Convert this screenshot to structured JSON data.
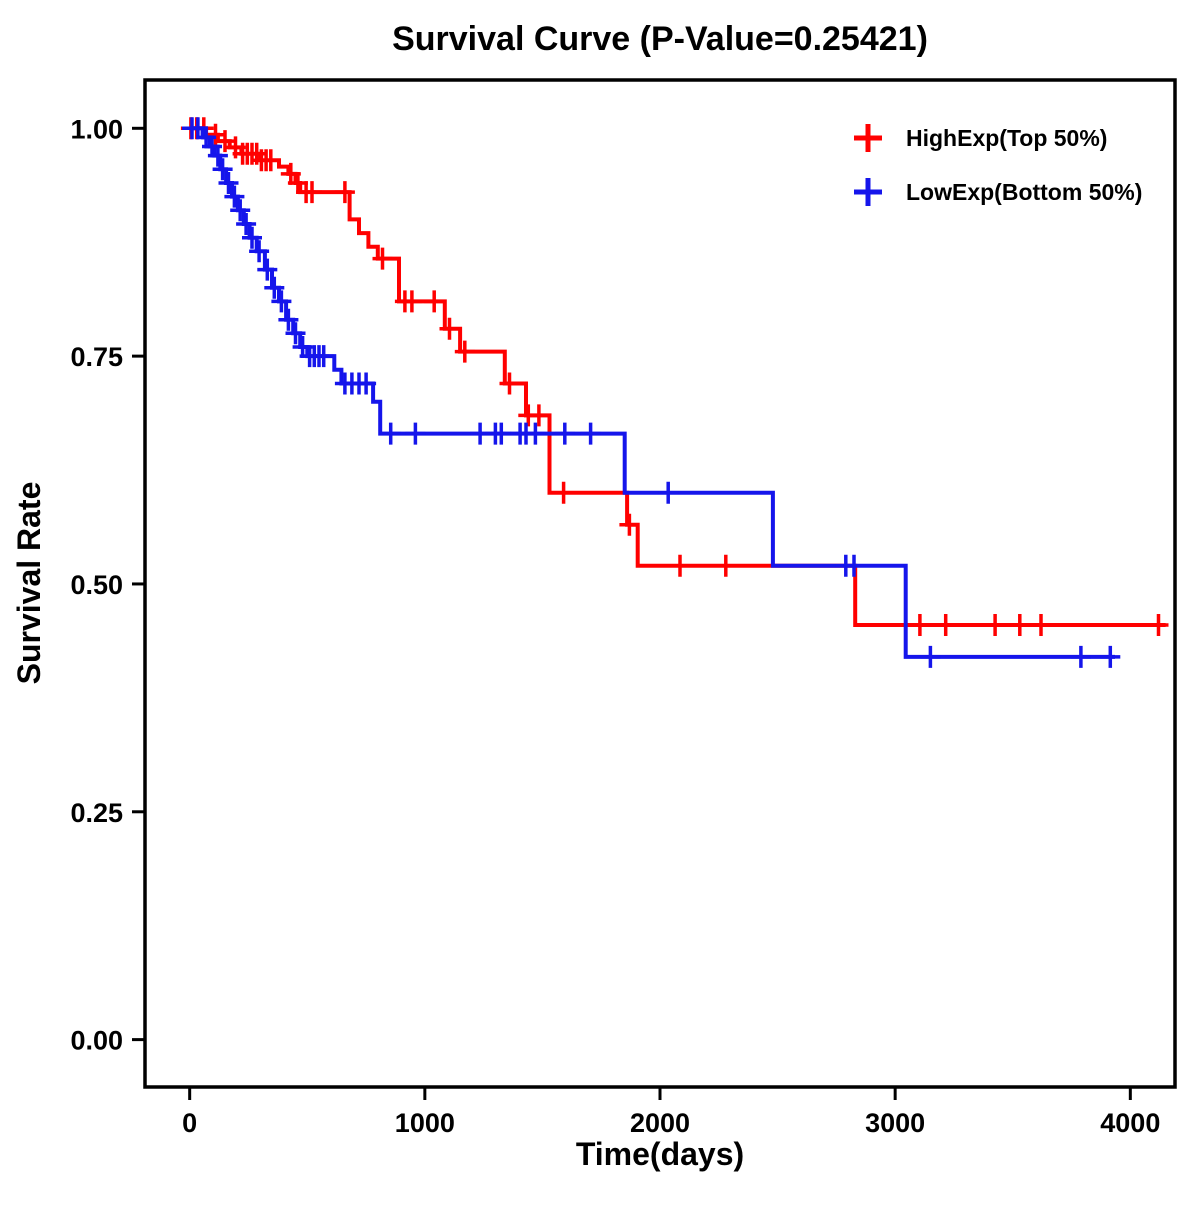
{
  "chart_data": {
    "type": "line",
    "subtype": "kaplan_meier_step_survival",
    "title": "Survival Curve (P-Value=0.25421)",
    "p_value": "0.25421",
    "xlabel": "Time(days)",
    "ylabel": "Survival Rate",
    "xlim": [
      -190,
      4190
    ],
    "ylim": [
      -0.052,
      1.053
    ],
    "grid": false,
    "legend_position": "top-right-inside",
    "xticks": [
      {
        "value": 0,
        "label": "0"
      },
      {
        "value": 1000,
        "label": "1000"
      },
      {
        "value": 2000,
        "label": "2000"
      },
      {
        "value": 3000,
        "label": "3000"
      },
      {
        "value": 4000,
        "label": "4000"
      }
    ],
    "yticks": [
      {
        "value": 0.0,
        "label": "0.00"
      },
      {
        "value": 0.25,
        "label": "0.25"
      },
      {
        "value": 0.5,
        "label": "0.50"
      },
      {
        "value": 0.75,
        "label": "0.75"
      },
      {
        "value": 1.0,
        "label": "1.00"
      }
    ],
    "series": [
      {
        "name": "HighExp(Top 50%)",
        "color": "#FF0000",
        "steps": [
          [
            0,
            1.0
          ],
          [
            70,
            0.993
          ],
          [
            120,
            0.986
          ],
          [
            170,
            0.979
          ],
          [
            220,
            0.972
          ],
          [
            300,
            0.965
          ],
          [
            380,
            0.958
          ],
          [
            420,
            0.95
          ],
          [
            450,
            0.94
          ],
          [
            470,
            0.93
          ],
          [
            680,
            0.9
          ],
          [
            720,
            0.885
          ],
          [
            760,
            0.87
          ],
          [
            800,
            0.857
          ],
          [
            890,
            0.81
          ],
          [
            1085,
            0.78
          ],
          [
            1150,
            0.755
          ],
          [
            1340,
            0.72
          ],
          [
            1430,
            0.685
          ],
          [
            1530,
            0.6
          ],
          [
            1860,
            0.565
          ],
          [
            1905,
            0.52
          ],
          [
            2830,
            0.455
          ],
          [
            4150,
            0.455
          ]
        ],
        "censors": [
          [
            5,
            1.0
          ],
          [
            30,
            1.0
          ],
          [
            60,
            1.0
          ],
          [
            110,
            0.993
          ],
          [
            150,
            0.986
          ],
          [
            195,
            0.979
          ],
          [
            225,
            0.972
          ],
          [
            245,
            0.972
          ],
          [
            265,
            0.972
          ],
          [
            285,
            0.972
          ],
          [
            305,
            0.965
          ],
          [
            325,
            0.965
          ],
          [
            345,
            0.965
          ],
          [
            430,
            0.95
          ],
          [
            460,
            0.94
          ],
          [
            495,
            0.93
          ],
          [
            520,
            0.93
          ],
          [
            660,
            0.93
          ],
          [
            820,
            0.857
          ],
          [
            915,
            0.81
          ],
          [
            945,
            0.81
          ],
          [
            1040,
            0.81
          ],
          [
            1105,
            0.78
          ],
          [
            1170,
            0.755
          ],
          [
            1360,
            0.72
          ],
          [
            1440,
            0.685
          ],
          [
            1485,
            0.685
          ],
          [
            1590,
            0.6
          ],
          [
            1870,
            0.565
          ],
          [
            2085,
            0.52
          ],
          [
            2280,
            0.52
          ],
          [
            3105,
            0.455
          ],
          [
            3215,
            0.455
          ],
          [
            3425,
            0.455
          ],
          [
            3530,
            0.455
          ],
          [
            3620,
            0.455
          ],
          [
            4120,
            0.455
          ]
        ]
      },
      {
        "name": "LowExp(Bottom 50%)",
        "color": "#1515EB",
        "steps": [
          [
            0,
            1.0
          ],
          [
            55,
            0.99
          ],
          [
            85,
            0.98
          ],
          [
            105,
            0.97
          ],
          [
            130,
            0.955
          ],
          [
            155,
            0.94
          ],
          [
            180,
            0.925
          ],
          [
            205,
            0.91
          ],
          [
            230,
            0.895
          ],
          [
            255,
            0.88
          ],
          [
            285,
            0.865
          ],
          [
            320,
            0.845
          ],
          [
            350,
            0.825
          ],
          [
            380,
            0.81
          ],
          [
            410,
            0.79
          ],
          [
            440,
            0.775
          ],
          [
            470,
            0.76
          ],
          [
            500,
            0.75
          ],
          [
            615,
            0.735
          ],
          [
            645,
            0.72
          ],
          [
            780,
            0.7
          ],
          [
            810,
            0.665
          ],
          [
            1850,
            0.6
          ],
          [
            2480,
            0.52
          ],
          [
            3045,
            0.42
          ],
          [
            3935,
            0.42
          ]
        ],
        "censors": [
          [
            10,
            1.0
          ],
          [
            35,
            1.0
          ],
          [
            70,
            0.99
          ],
          [
            95,
            0.98
          ],
          [
            120,
            0.97
          ],
          [
            140,
            0.955
          ],
          [
            165,
            0.94
          ],
          [
            190,
            0.925
          ],
          [
            215,
            0.91
          ],
          [
            240,
            0.895
          ],
          [
            265,
            0.88
          ],
          [
            295,
            0.865
          ],
          [
            330,
            0.845
          ],
          [
            360,
            0.825
          ],
          [
            390,
            0.81
          ],
          [
            420,
            0.79
          ],
          [
            450,
            0.775
          ],
          [
            480,
            0.76
          ],
          [
            510,
            0.75
          ],
          [
            530,
            0.75
          ],
          [
            550,
            0.75
          ],
          [
            570,
            0.75
          ],
          [
            660,
            0.72
          ],
          [
            690,
            0.72
          ],
          [
            720,
            0.72
          ],
          [
            750,
            0.72
          ],
          [
            855,
            0.665
          ],
          [
            960,
            0.665
          ],
          [
            1235,
            0.665
          ],
          [
            1300,
            0.665
          ],
          [
            1325,
            0.665
          ],
          [
            1405,
            0.665
          ],
          [
            1430,
            0.665
          ],
          [
            1470,
            0.665
          ],
          [
            1595,
            0.665
          ],
          [
            1705,
            0.665
          ],
          [
            2035,
            0.6
          ],
          [
            2790,
            0.52
          ],
          [
            2825,
            0.52
          ],
          [
            3150,
            0.42
          ],
          [
            3790,
            0.42
          ],
          [
            3915,
            0.42
          ]
        ]
      }
    ]
  }
}
